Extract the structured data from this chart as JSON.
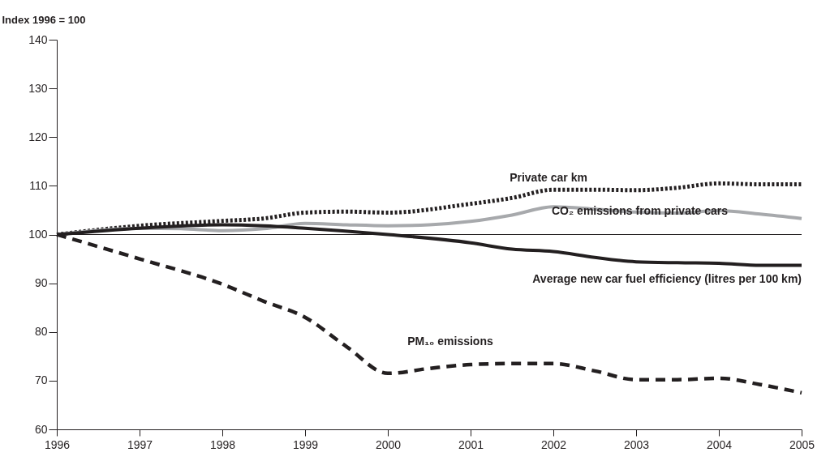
{
  "chart_data": {
    "type": "line",
    "ylabel": "Index 1996 = 100",
    "xlim": [
      1996,
      2005
    ],
    "xticks": [
      1996,
      1997,
      1998,
      1999,
      2000,
      2001,
      2002,
      2003,
      2004,
      2005
    ],
    "ylim": [
      60,
      140
    ],
    "yticks": [
      60,
      70,
      80,
      90,
      100,
      110,
      120,
      130,
      140
    ],
    "grid": false,
    "legend": false,
    "marker": "none",
    "ref_lines": [
      {
        "axis": "y",
        "value": 100,
        "color": "#231f20",
        "line_style": "solid"
      }
    ],
    "series": [
      {
        "name": "Private car km",
        "color": "#231f20",
        "line_style": "dotted",
        "x": [
          1996,
          1997,
          1998,
          1998.5,
          1999,
          1999.5,
          2000,
          2001,
          2001.5,
          2002,
          2002.5,
          2003,
          2003.5,
          2004,
          2004.5,
          2005
        ],
        "values": [
          100,
          101.8,
          102.8,
          103.3,
          104.5,
          104.7,
          104.5,
          106.3,
          107.5,
          109.2,
          109.2,
          109.1,
          109.6,
          110.5,
          110.3,
          110.3
        ]
      },
      {
        "name": "CO₂ emissions from private cars",
        "color": "#a7a9ac",
        "x": [
          1996,
          1997,
          1997.5,
          1998,
          1998.5,
          1999,
          1999.5,
          2000,
          2000.5,
          2001,
          2001.5,
          2002,
          2002.5,
          2003,
          2003.5,
          2004,
          2004.5,
          2005
        ],
        "line_style": "solid",
        "values": [
          100,
          101.3,
          101.2,
          100.8,
          101.2,
          102.3,
          102.0,
          101.8,
          102.0,
          102.7,
          104.0,
          105.7,
          105.2,
          104.6,
          104.4,
          104.9,
          104.2,
          103.3
        ]
      },
      {
        "name": "Average new car fuel efficiency (litres per 100 km)",
        "color": "#231f20",
        "line_style": "solid",
        "x": [
          1996,
          1997,
          1998,
          1998.5,
          1999,
          2000,
          2001,
          2001.5,
          2002,
          2002.5,
          2003,
          2003.5,
          2004,
          2004.5,
          2005
        ],
        "values": [
          100,
          101.3,
          102.0,
          101.8,
          101.3,
          100.0,
          98.3,
          97.0,
          96.5,
          95.3,
          94.4,
          94.2,
          94.1,
          93.7,
          93.7
        ]
      },
      {
        "name": "PM₁₀ emissions",
        "color": "#231f20",
        "line_style": "dashed",
        "x": [
          1996,
          1997,
          1998,
          1998.5,
          1999,
          1999.5,
          2000,
          2000.5,
          2001,
          2001.5,
          2002,
          2002.5,
          2003,
          2003.5,
          2004,
          2004.5,
          2005
        ],
        "values": [
          100,
          95.0,
          89.8,
          86.3,
          83.0,
          77.0,
          71.5,
          72.5,
          73.3,
          73.5,
          73.5,
          72.0,
          70.2,
          70.2,
          70.5,
          69.2,
          67.5
        ]
      }
    ]
  }
}
